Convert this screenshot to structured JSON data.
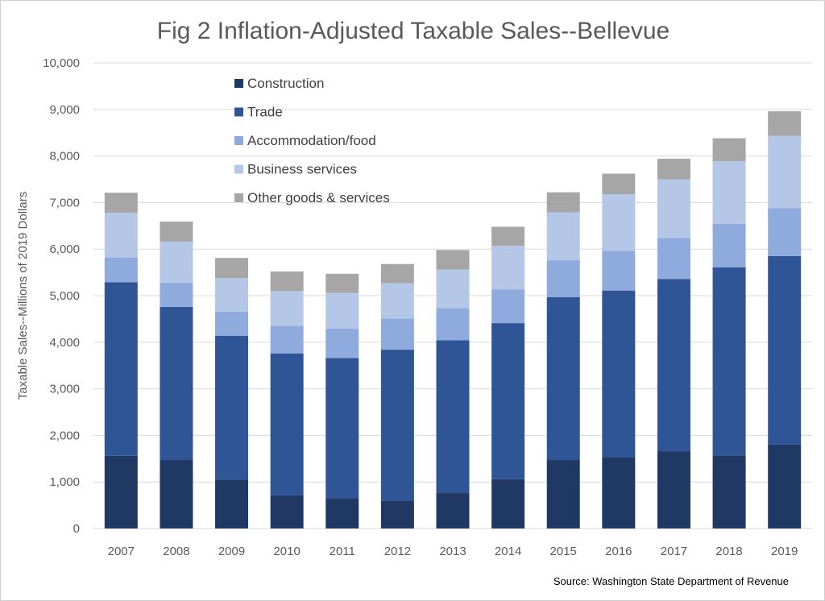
{
  "chart_data": {
    "type": "bar",
    "stacked": true,
    "title": "Fig 2 Inflation-Adjusted Taxable Sales--Bellevue",
    "xlabel": "",
    "ylabel": "Taxable Sales--Millions of 2019 Dollars",
    "ylim": [
      0,
      10000
    ],
    "yticks": [
      "0",
      "1,000",
      "2,000",
      "3,000",
      "4,000",
      "5,000",
      "6,000",
      "7,000",
      "8,000",
      "9,000",
      "10,000"
    ],
    "grid": true,
    "legend_position": "top-left",
    "categories": [
      "2007",
      "2008",
      "2009",
      "2010",
      "2011",
      "2012",
      "2013",
      "2014",
      "2015",
      "2016",
      "2017",
      "2018",
      "2019"
    ],
    "series": [
      {
        "name": "Construction",
        "color": "#1f3864",
        "values": [
          1560,
          1470,
          1050,
          710,
          650,
          600,
          760,
          1060,
          1470,
          1530,
          1660,
          1570,
          1800
        ]
      },
      {
        "name": "Trade",
        "color": "#2f5597",
        "values": [
          3730,
          3290,
          3090,
          3050,
          3010,
          3240,
          3280,
          3350,
          3500,
          3580,
          3700,
          4040,
          4050
        ]
      },
      {
        "name": "Accommodation/food",
        "color": "#8faadc",
        "values": [
          530,
          520,
          520,
          590,
          630,
          670,
          690,
          720,
          790,
          850,
          880,
          930,
          1030
        ]
      },
      {
        "name": "Business services",
        "color": "#b4c7e7",
        "values": [
          960,
          880,
          720,
          750,
          770,
          760,
          830,
          940,
          1030,
          1220,
          1260,
          1350,
          1550
        ]
      },
      {
        "name": "Other goods & services",
        "color": "#a6a6a6",
        "values": [
          430,
          430,
          430,
          420,
          410,
          410,
          420,
          410,
          430,
          440,
          440,
          490,
          530
        ]
      }
    ],
    "source": "Source: Washington State Department of Revenue"
  }
}
